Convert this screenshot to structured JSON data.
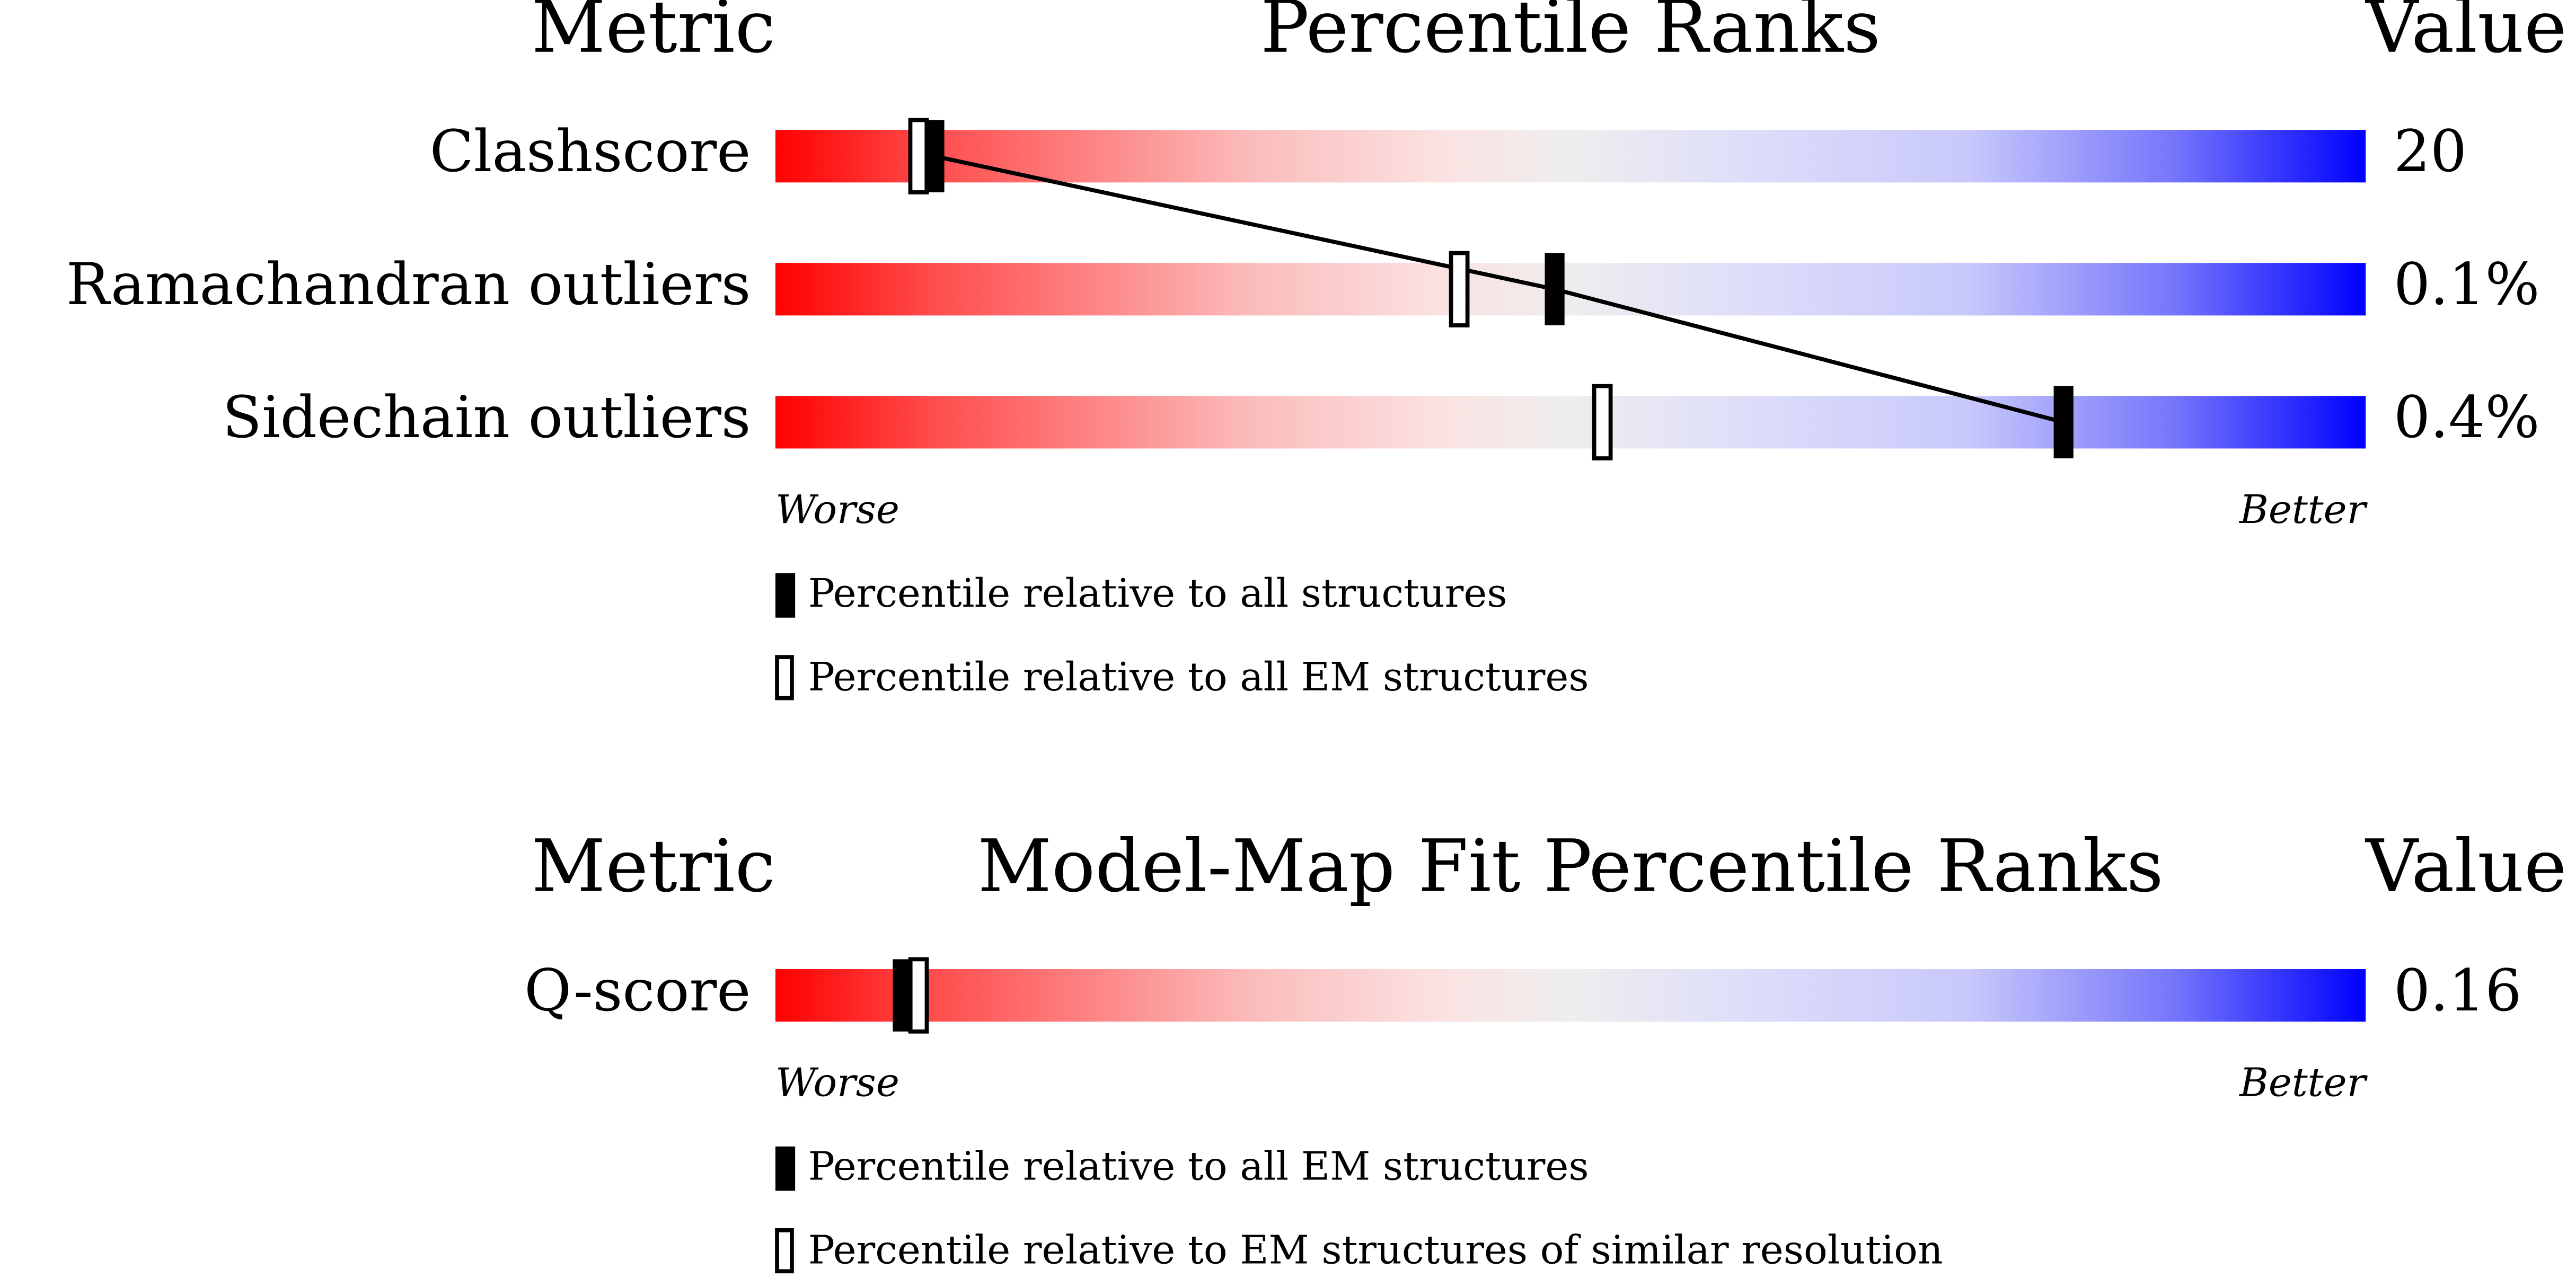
{
  "panels": [
    {
      "headers": {
        "metric": "Metric",
        "title": "Percentile Ranks",
        "value": "Value"
      },
      "rows": [
        {
          "metric": "Clashscore",
          "value": "20",
          "percentile_all": 10,
          "percentile_em": 9
        },
        {
          "metric": "Ramachandran outliers",
          "value": "0.1%",
          "percentile_all": 49,
          "percentile_em": 43
        },
        {
          "metric": "Sidechain outliers",
          "value": "0.4%",
          "percentile_all": 81,
          "percentile_em": 52
        }
      ],
      "axis": {
        "worse": "Worse",
        "better": "Better"
      },
      "legend": {
        "filled": "Percentile relative to all structures",
        "open": "Percentile relative to all EM structures"
      }
    },
    {
      "headers": {
        "metric": "Metric",
        "title": "Model-Map Fit Percentile Ranks",
        "value": "Value"
      },
      "rows": [
        {
          "metric": "Q-score",
          "value": "0.16",
          "percentile_all": 8,
          "percentile_em": 9
        }
      ],
      "axis": {
        "worse": "Worse",
        "better": "Better"
      },
      "legend": {
        "filled": "Percentile relative to all EM structures",
        "open": "Percentile relative to EM structures of similar resolution"
      }
    }
  ]
}
